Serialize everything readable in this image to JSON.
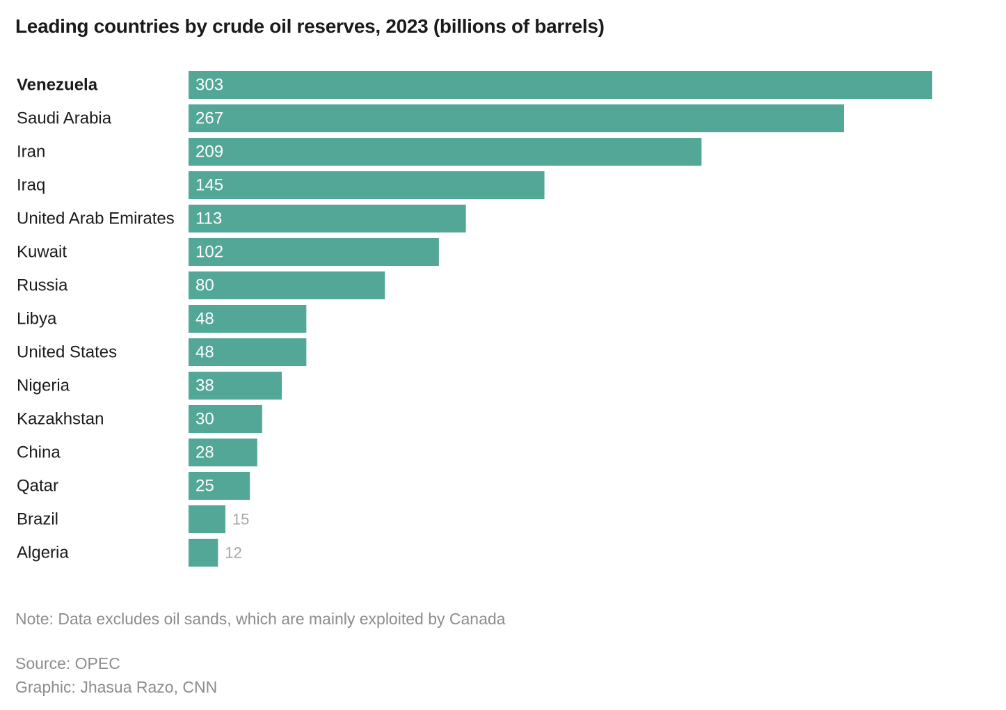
{
  "title": "Leading countries by crude oil reserves, 2023 (billions of barrels)",
  "note": "Note: Data excludes oil sands, which are mainly exploited by Canada",
  "source": "Source: OPEC",
  "credit": "Graphic: Jhasua Razo, CNN",
  "colors": {
    "bar": "#53a797",
    "label_inside": "#ffffff",
    "label_outside": "#a6a6a6",
    "category_text": "#1a1a1a"
  },
  "chart_data": {
    "type": "bar",
    "orientation": "horizontal",
    "title": "Leading countries by crude oil reserves, 2023 (billions of barrels)",
    "xlabel": "",
    "ylabel": "",
    "unit": "billions of barrels",
    "highlighted": "Venezuela",
    "categories": [
      "Venezuela",
      "Saudi Arabia",
      "Iran",
      "Iraq",
      "United Arab Emirates",
      "Kuwait",
      "Russia",
      "Libya",
      "United States",
      "Nigeria",
      "Kazakhstan",
      "China",
      "Qatar",
      "Brazil",
      "Algeria"
    ],
    "values": [
      303,
      267,
      209,
      145,
      113,
      102,
      80,
      48,
      48,
      38,
      30,
      28,
      25,
      15,
      12
    ],
    "value_labels": [
      "303",
      "267",
      "209",
      "145",
      "113",
      "102",
      "80",
      "48",
      "48",
      "38",
      "30",
      "28",
      "25",
      "15",
      "12"
    ],
    "xlim": [
      0,
      303
    ]
  }
}
